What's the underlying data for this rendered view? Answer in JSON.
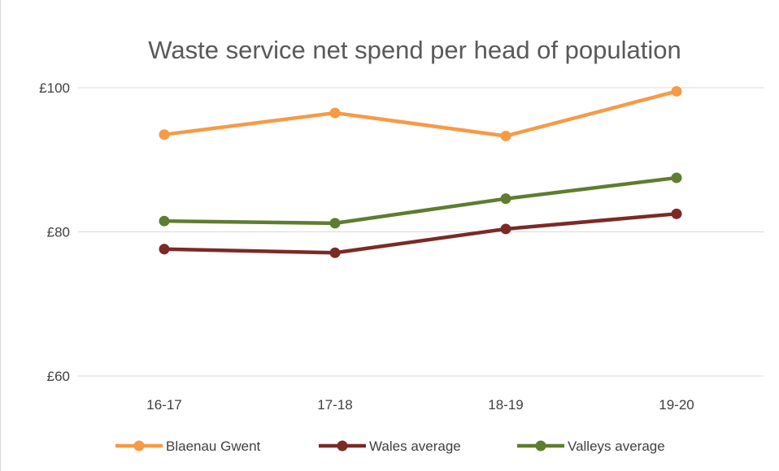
{
  "chart_data": {
    "type": "line",
    "title": "Waste service net spend per head of population",
    "xlabel": "",
    "ylabel": "",
    "categories": [
      "16-17",
      "17-18",
      "18-19",
      "19-20"
    ],
    "ylim": [
      60,
      100
    ],
    "yticks": [
      60,
      80,
      100
    ],
    "ytick_labels": [
      "£60",
      "£80",
      "£100"
    ],
    "grid": true,
    "legend_position": "bottom",
    "series": [
      {
        "name": "Blaenau Gwent",
        "values": [
          93.5,
          96.5,
          93.3,
          99.5
        ],
        "color": "#f79a46"
      },
      {
        "name": "Wales average",
        "values": [
          77.6,
          77.1,
          80.4,
          82.5
        ],
        "color": "#7b2a26"
      },
      {
        "name": "Valleys average",
        "values": [
          81.5,
          81.2,
          84.6,
          87.5
        ],
        "color": "#5e7d2f"
      }
    ]
  }
}
